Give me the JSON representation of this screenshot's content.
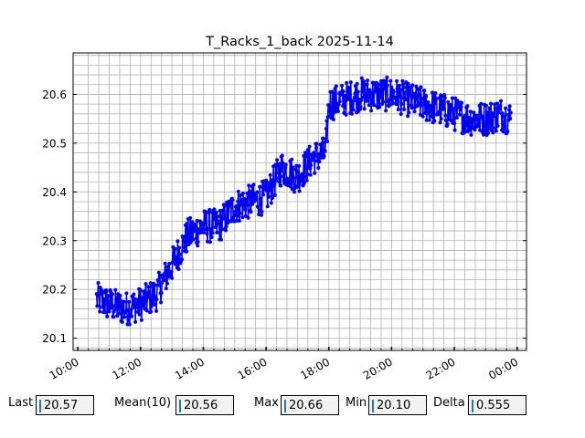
{
  "chart_data": {
    "type": "line",
    "title": "T_Racks_1_back 2025-11-14",
    "xlabel": "",
    "ylabel": "",
    "x_range_hours": [
      9.85,
      24.3
    ],
    "ylim": [
      20.075,
      20.685
    ],
    "x_tick_labels": [
      "10:00",
      "12:00",
      "14:00",
      "16:00",
      "18:00",
      "20:00",
      "22:00",
      "00:00"
    ],
    "y_tick_labels": [
      "20.1",
      "20.2",
      "20.3",
      "20.4",
      "20.5",
      "20.6"
    ],
    "grid": true,
    "series": [
      {
        "color": "#0000ee",
        "marker": "dot",
        "trend_hours": [
          10.6,
          11.0,
          11.5,
          12.0,
          12.5,
          13.0,
          13.5,
          14.0,
          14.5,
          15.0,
          15.5,
          16.0,
          16.5,
          17.0,
          17.5,
          17.9,
          18.0,
          18.5,
          19.0,
          19.5,
          20.0,
          20.5,
          21.0,
          21.5,
          22.0,
          22.5,
          23.0,
          23.5,
          23.8
        ],
        "trend_values": [
          20.18,
          20.17,
          20.16,
          20.17,
          20.19,
          20.25,
          20.31,
          20.33,
          20.33,
          20.37,
          20.38,
          20.39,
          20.45,
          20.43,
          20.47,
          20.48,
          20.58,
          20.59,
          20.6,
          20.6,
          20.6,
          20.59,
          20.58,
          20.57,
          20.56,
          20.55,
          20.55,
          20.56,
          20.55
        ],
        "noise_amplitude": 0.035
      }
    ]
  },
  "stats": {
    "last_label": "Last",
    "last_value": "20.57",
    "mean_label": "Mean(10)",
    "mean_value": "20.56",
    "max_label": "Max",
    "max_value": "20.66",
    "min_label": "Min",
    "min_value": "20.10",
    "delta_label": "Delta",
    "delta_value": "0.555"
  }
}
